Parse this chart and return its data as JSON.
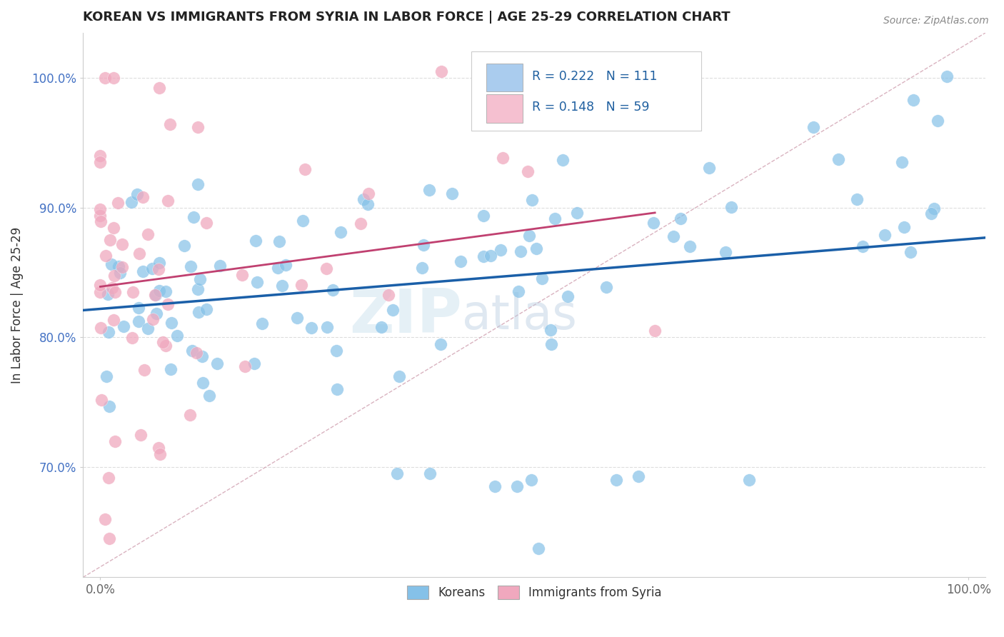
{
  "title": "KOREAN VS IMMIGRANTS FROM SYRIA IN LABOR FORCE | AGE 25-29 CORRELATION CHART",
  "source": "Source: ZipAtlas.com",
  "ylabel": "In Labor Force | Age 25-29",
  "xlim": [
    -0.02,
    1.02
  ],
  "ylim": [
    0.615,
    1.035
  ],
  "x_tick_labels": [
    "0.0%",
    "100.0%"
  ],
  "x_tick_positions": [
    0.0,
    1.0
  ],
  "y_tick_labels": [
    "70.0%",
    "80.0%",
    "90.0%",
    "100.0%"
  ],
  "y_tick_positions": [
    0.7,
    0.8,
    0.9,
    1.0
  ],
  "korean_R": 0.222,
  "korean_N": 111,
  "syria_R": 0.148,
  "syria_N": 59,
  "korean_color": "#85c1e8",
  "korea_edge_color": "#85c1e8",
  "syria_color": "#f0a8be",
  "syria_edge_color": "#f0a8be",
  "korean_trendline_color": "#1a5fa8",
  "syria_trendline_color": "#c04070",
  "diagonal_color": "#d0a0b0",
  "legend_box_korean_color": "#aaccee",
  "legend_box_syria_color": "#f5c0d0",
  "watermark": "ZIPatlas",
  "title_color": "#222222",
  "source_color": "#888888",
  "axis_label_color": "#333333",
  "tick_color_y": "#4472c4",
  "tick_color_x": "#666666"
}
